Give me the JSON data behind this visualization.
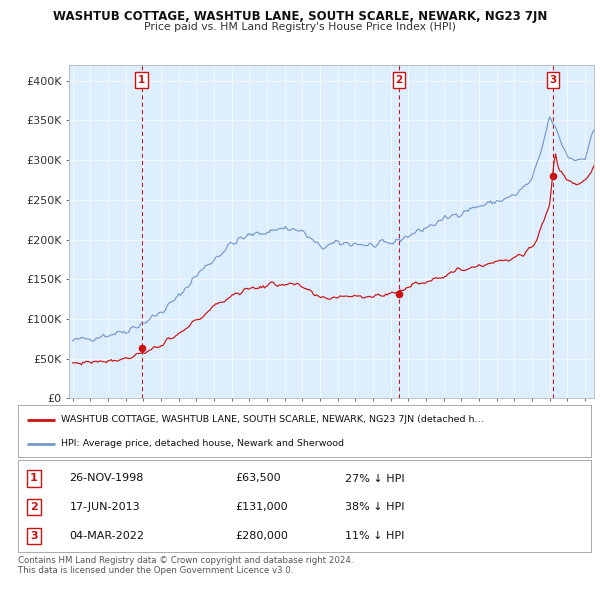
{
  "title": "WASHTUB COTTAGE, WASHTUB LANE, SOUTH SCARLE, NEWARK, NG23 7JN",
  "subtitle": "Price paid vs. HM Land Registry's House Price Index (HPI)",
  "bg_color": "#ffffff",
  "chart_bg_color": "#ddeeff",
  "grid_color": "#ffffff",
  "hpi_color": "#7799cc",
  "price_color": "#cc1111",
  "dashed_color": "#cc1111",
  "sale_marker_color": "#cc1111",
  "ylim": [
    0,
    420000
  ],
  "yticks": [
    0,
    50000,
    100000,
    150000,
    200000,
    250000,
    300000,
    350000,
    400000
  ],
  "ytick_labels": [
    "£0",
    "£50K",
    "£100K",
    "£150K",
    "£200K",
    "£250K",
    "£300K",
    "£350K",
    "£400K"
  ],
  "x_start_year": 1995,
  "x_end_year": 2025,
  "sales": [
    {
      "label": "1",
      "date_num": 1998.91,
      "price": 63500
    },
    {
      "label": "2",
      "date_num": 2013.46,
      "price": 131000
    },
    {
      "label": "3",
      "date_num": 2022.17,
      "price": 280000
    }
  ],
  "legend_line1": "WASHTUB COTTAGE, WASHTUB LANE, SOUTH SCARLE, NEWARK, NG23 7JN (detached h…",
  "legend_line2": "HPI: Average price, detached house, Newark and Sherwood",
  "table_rows": [
    {
      "num": "1",
      "date": "26-NOV-1998",
      "price": "£63,500",
      "note": "27% ↓ HPI"
    },
    {
      "num": "2",
      "date": "17-JUN-2013",
      "price": "£131,000",
      "note": "38% ↓ HPI"
    },
    {
      "num": "3",
      "date": "04-MAR-2022",
      "price": "£280,000",
      "note": "11% ↓ HPI"
    }
  ],
  "footer": "Contains HM Land Registry data © Crown copyright and database right 2024.\nThis data is licensed under the Open Government Licence v3.0."
}
